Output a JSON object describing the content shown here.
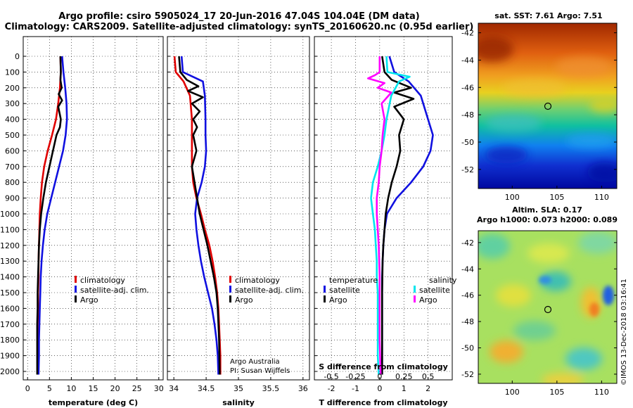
{
  "titles": {
    "line1": "Argo profile: csiro 5905024_17 20-Jun-2016 47.04S 104.04E (DM data)",
    "line2": "Climatology: CARS2009. Satellite-adjusted climatology: synTS_20160620.nc (0.95d earlier)"
  },
  "colors": {
    "climatology": "#e00000",
    "satellite": "#1010e0",
    "argo": "#000000",
    "argo_s": "#ff00ff",
    "satellite_s": "#00e5ee"
  },
  "depth_ticks": [
    "0",
    "100",
    "200",
    "300",
    "400",
    "500",
    "600",
    "700",
    "800",
    "900",
    "1000",
    "1100",
    "1200",
    "1300",
    "1400",
    "1500",
    "1600",
    "1700",
    "1800",
    "1900",
    "2000"
  ],
  "panels": {
    "temperature": {
      "xlabel": "temperature (deg C)",
      "xticks": [
        "0",
        "5",
        "10",
        "15",
        "20",
        "25",
        "30"
      ],
      "legend": [
        "climatology",
        "satellite-adj. clim.",
        "Argo"
      ]
    },
    "salinity": {
      "xlabel": "salinity",
      "xticks": [
        "34",
        "34.5",
        "35",
        "35.5",
        "36"
      ],
      "legend": [
        "climatology",
        "satellite-adj. clim.",
        "Argo"
      ],
      "note1": "Argo Australia",
      "note2": "PI: Susan Wijffels"
    },
    "difference": {
      "xlabel": "T difference from climatology",
      "xticks": [
        "-2",
        "-1",
        "0",
        "1",
        "2"
      ],
      "s_label": "S difference from climatology",
      "s_ticks": [
        "-0.5",
        "-0.25",
        "0",
        "0.25",
        "0.5"
      ],
      "legend_t_title": "temperature",
      "legend_s_title": "salinity",
      "legend_t": [
        "satellite",
        "Argo"
      ],
      "legend_s": [
        "satellite",
        "Argo"
      ]
    }
  },
  "maps": {
    "sst": {
      "title": "sat. SST: 7.61 Argo: 7.51",
      "yticks": [
        "-42",
        "-44",
        "-46",
        "-48",
        "-50",
        "-52"
      ],
      "xticks": [
        "100",
        "105",
        "110"
      ]
    },
    "sla": {
      "title1": "Altim. SLA: 0.17",
      "title2": "Argo h1000: 0.073 h2000: 0.089",
      "yticks": [
        "-42",
        "-44",
        "-46",
        "-48",
        "-50",
        "-52"
      ],
      "xticks": [
        "100",
        "105",
        "110"
      ]
    },
    "credit": "©IMOS 13-Dec-2018 03:16:41"
  },
  "chart_data": [
    {
      "type": "line",
      "title": "",
      "xlabel": "temperature (deg C)",
      "ylabel": "",
      "xlim": [
        -1,
        31
      ],
      "ylim": [
        2050,
        0
      ],
      "series": [
        {
          "name": "climatology",
          "x": [
            7.5,
            7.6,
            7.4,
            7.0,
            6.5,
            5.6,
            4.6,
            3.8,
            3.3,
            3.0,
            2.8,
            2.7,
            2.6,
            2.5,
            2.5,
            2.4,
            2.4,
            2.3,
            2.3,
            2.3,
            2.3
          ],
          "y": [
            0,
            100,
            200,
            300,
            400,
            500,
            600,
            700,
            800,
            900,
            1000,
            1100,
            1200,
            1300,
            1400,
            1500,
            1600,
            1700,
            1800,
            1900,
            2020
          ]
        },
        {
          "name": "satellite-adj. clim.",
          "x": [
            7.9,
            8.2,
            8.6,
            8.9,
            9.0,
            8.7,
            8.1,
            7.2,
            6.3,
            5.4,
            4.5,
            3.9,
            3.5,
            3.2,
            3.0,
            2.9,
            2.8,
            2.7,
            2.6,
            2.6,
            2.5
          ],
          "y": [
            0,
            100,
            200,
            300,
            400,
            500,
            600,
            700,
            800,
            900,
            1000,
            1100,
            1200,
            1300,
            1400,
            1500,
            1600,
            1700,
            1800,
            1900,
            2020
          ]
        },
        {
          "name": "Argo",
          "x": [
            7.5,
            7.6,
            7.5,
            7.8,
            7.1,
            7.9,
            7.0,
            7.6,
            7.4,
            6.6,
            5.8,
            5.0,
            4.2,
            3.6,
            3.1,
            2.8,
            2.6,
            2.5,
            2.4,
            2.3,
            2.3,
            2.2,
            2.2,
            2.2
          ],
          "y": [
            0,
            100,
            150,
            200,
            240,
            280,
            320,
            400,
            450,
            500,
            600,
            700,
            800,
            900,
            1000,
            1100,
            1200,
            1300,
            1400,
            1500,
            1600,
            1700,
            1850,
            2020
          ]
        }
      ]
    },
    {
      "type": "line",
      "title": "",
      "xlabel": "salinity",
      "ylabel": "",
      "xlim": [
        33.9,
        36.1
      ],
      "ylim": [
        2050,
        0
      ],
      "series": [
        {
          "name": "climatology",
          "x": [
            34.01,
            34.03,
            34.15,
            34.25,
            34.28,
            34.28,
            34.28,
            34.28,
            34.3,
            34.35,
            34.42,
            34.48,
            34.55,
            34.6,
            34.64,
            34.67,
            34.69,
            34.7,
            34.71,
            34.72,
            34.72
          ],
          "y": [
            0,
            100,
            160,
            250,
            400,
            500,
            600,
            700,
            800,
            900,
            1000,
            1100,
            1200,
            1300,
            1400,
            1500,
            1600,
            1700,
            1800,
            1900,
            2020
          ]
        },
        {
          "name": "satellite-adj. clim.",
          "x": [
            34.12,
            34.14,
            34.45,
            34.48,
            34.49,
            34.49,
            34.5,
            34.48,
            34.43,
            34.36,
            34.33,
            34.35,
            34.38,
            34.42,
            34.47,
            34.53,
            34.59,
            34.63,
            34.66,
            34.68,
            34.69
          ],
          "y": [
            0,
            100,
            160,
            250,
            400,
            500,
            600,
            700,
            800,
            900,
            1000,
            1100,
            1200,
            1300,
            1400,
            1500,
            1600,
            1700,
            1800,
            1900,
            2020
          ]
        },
        {
          "name": "Argo",
          "x": [
            34.08,
            34.1,
            34.2,
            34.38,
            34.22,
            34.45,
            34.28,
            34.4,
            34.3,
            34.36,
            34.3,
            34.35,
            34.28,
            34.32,
            34.36,
            34.4,
            34.46,
            34.52,
            34.57,
            34.62,
            34.66,
            34.68,
            34.7,
            34.71
          ],
          "y": [
            0,
            100,
            150,
            190,
            220,
            260,
            300,
            350,
            400,
            450,
            500,
            600,
            700,
            800,
            900,
            1000,
            1100,
            1200,
            1300,
            1400,
            1500,
            1600,
            1800,
            2020
          ]
        }
      ]
    },
    {
      "type": "line",
      "title": "",
      "xlabel": "T difference from climatology",
      "ylabel": "",
      "xlim": [
        -2.7,
        3.0
      ],
      "ylim": [
        2050,
        0
      ],
      "secondary_x": {
        "label": "S difference from climatology",
        "ticks": [
          -0.5,
          -0.25,
          0,
          0.25,
          0.5
        ]
      },
      "series": [
        {
          "name": "T satellite",
          "axis": "T",
          "x": [
            0.4,
            0.6,
            1.2,
            1.7,
            2.0,
            2.2,
            2.1,
            1.8,
            1.3,
            0.7,
            0.3,
            0.2,
            0.15,
            0.12,
            0.1,
            0.1,
            0.1,
            0.1,
            0.1,
            0.1,
            0.1
          ],
          "y": [
            0,
            100,
            160,
            250,
            400,
            500,
            600,
            700,
            800,
            900,
            1000,
            1100,
            1200,
            1300,
            1400,
            1500,
            1600,
            1700,
            1800,
            1900,
            2020
          ]
        },
        {
          "name": "T Argo",
          "axis": "T",
          "x": [
            0.1,
            0.2,
            0.5,
            1.3,
            0.6,
            1.4,
            0.6,
            1.0,
            0.9,
            0.8,
            0.85,
            0.7,
            0.5,
            0.35,
            0.25,
            0.2,
            0.15,
            0.12,
            0.1,
            0.1,
            0.1,
            0.1
          ],
          "y": [
            0,
            100,
            150,
            200,
            230,
            270,
            320,
            400,
            450,
            500,
            600,
            700,
            800,
            900,
            1000,
            1100,
            1200,
            1300,
            1500,
            1700,
            1850,
            2020
          ]
        },
        {
          "name": "S satellite",
          "axis": "S",
          "x": [
            0.07,
            0.08,
            0.31,
            0.2,
            0.12,
            0.07,
            0.05,
            0.02,
            -0.02,
            -0.07,
            -0.09,
            -0.07,
            -0.05,
            -0.04,
            -0.03,
            -0.03,
            -0.02,
            -0.02,
            -0.02,
            -0.02,
            -0.01
          ],
          "y": [
            0,
            100,
            130,
            160,
            250,
            400,
            500,
            600,
            700,
            800,
            900,
            1000,
            1100,
            1200,
            1300,
            1400,
            1500,
            1600,
            1700,
            1900,
            2020
          ]
        },
        {
          "name": "S Argo",
          "axis": "S",
          "x": [
            0.0,
            0.0,
            -0.05,
            -0.12,
            0.05,
            -0.02,
            0.12,
            0.02,
            0.05,
            0.03,
            0.02,
            0.0,
            -0.01,
            -0.03,
            -0.03,
            -0.02,
            -0.01,
            0.0,
            0.0,
            0.0,
            0.01
          ],
          "y": [
            0,
            100,
            120,
            140,
            170,
            200,
            230,
            300,
            400,
            500,
            600,
            700,
            800,
            900,
            1000,
            1100,
            1200,
            1400,
            1600,
            1800,
            2020
          ]
        }
      ]
    }
  ]
}
